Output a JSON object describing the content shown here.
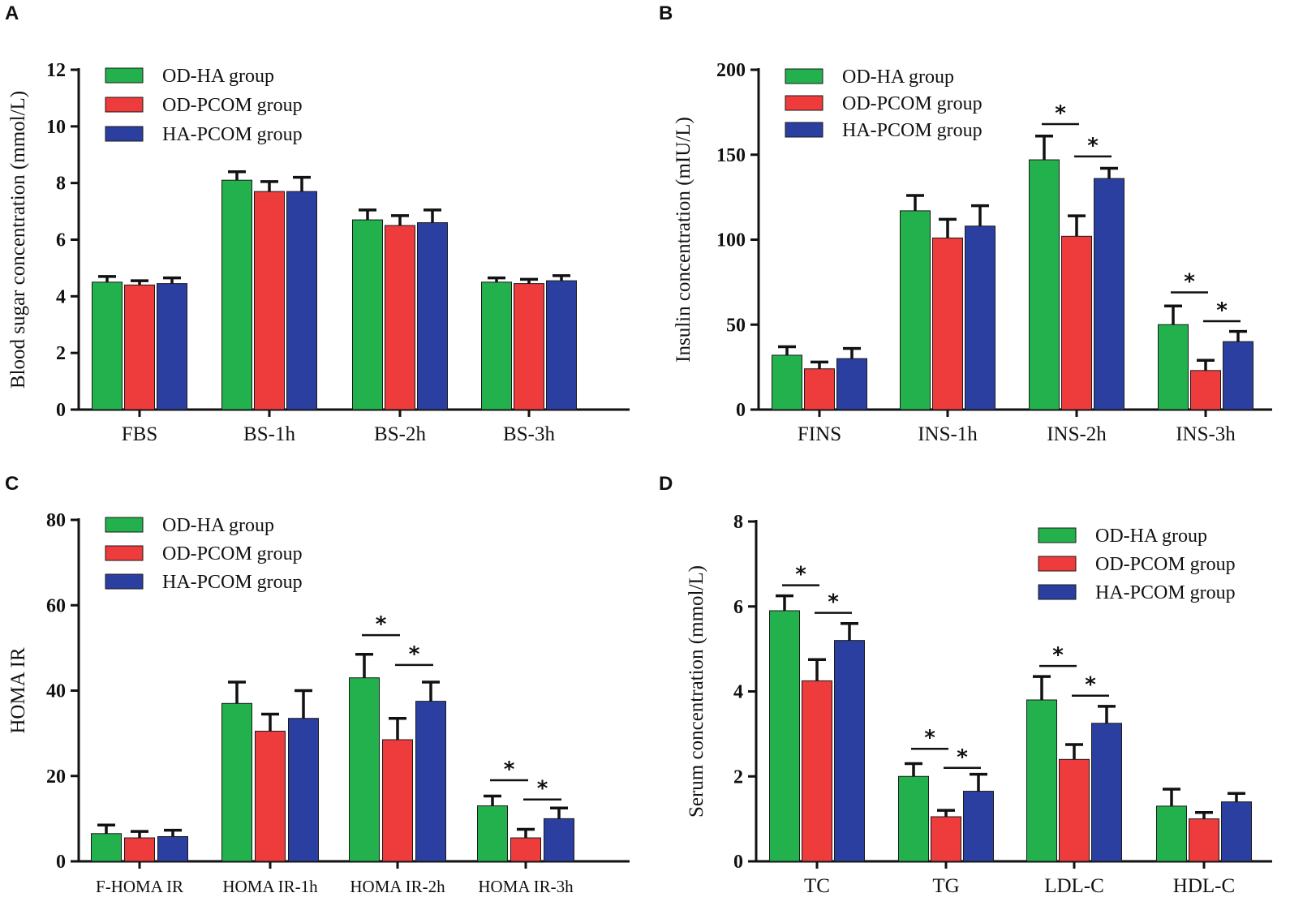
{
  "colors": {
    "od_ha": "#22b14c",
    "od_pcom": "#ee3b3b",
    "ha_pcom": "#2b3fa0",
    "axis": "#111111"
  },
  "legend": [
    "OD-HA group",
    "OD-PCOM group",
    "HA-PCOM group"
  ],
  "chart_data": [
    {
      "panel": "A",
      "type": "bar",
      "ylabel": "Blood sugar concentration (mmol/L)",
      "ylim": [
        0,
        12
      ],
      "yticks": [
        0,
        2,
        4,
        6,
        8,
        10,
        12
      ],
      "categories": [
        "FBS",
        "BS-1h",
        "BS-2h",
        "BS-3h"
      ],
      "series": [
        {
          "name": "OD-HA group",
          "values": [
            4.5,
            8.1,
            6.7,
            4.5
          ],
          "errors": [
            0.2,
            0.3,
            0.35,
            0.15
          ]
        },
        {
          "name": "OD-PCOM group",
          "values": [
            4.4,
            7.7,
            6.5,
            4.45
          ],
          "errors": [
            0.15,
            0.35,
            0.35,
            0.15
          ]
        },
        {
          "name": "HA-PCOM group",
          "values": [
            4.45,
            7.7,
            6.6,
            4.55
          ],
          "errors": [
            0.2,
            0.5,
            0.45,
            0.18
          ]
        }
      ],
      "legend_position": "top-left",
      "significance": []
    },
    {
      "panel": "B",
      "type": "bar",
      "ylabel": "Insulin concentration (mIU/L)",
      "ylim": [
        0,
        200
      ],
      "yticks": [
        0,
        50,
        100,
        150,
        200
      ],
      "categories": [
        "FINS",
        "INS-1h",
        "INS-2h",
        "INS-3h"
      ],
      "series": [
        {
          "name": "OD-HA group",
          "values": [
            32,
            117,
            147,
            50
          ],
          "errors": [
            5,
            9,
            14,
            11
          ]
        },
        {
          "name": "OD-PCOM group",
          "values": [
            24,
            101,
            102,
            23
          ],
          "errors": [
            4,
            11,
            12,
            6
          ]
        },
        {
          "name": "HA-PCOM group",
          "values": [
            30,
            108,
            136,
            40
          ],
          "errors": [
            6,
            12,
            6,
            6
          ]
        }
      ],
      "legend_position": "top-left",
      "significance": [
        {
          "category": 2,
          "from": 0,
          "to": 1,
          "y": 168,
          "label": "*"
        },
        {
          "category": 2,
          "from": 1,
          "to": 2,
          "y": 149,
          "label": "*"
        },
        {
          "category": 3,
          "from": 0,
          "to": 1,
          "y": 69,
          "label": "*"
        },
        {
          "category": 3,
          "from": 1,
          "to": 2,
          "y": 52,
          "label": "*"
        }
      ]
    },
    {
      "panel": "C",
      "type": "bar",
      "ylabel": "HOMA IR",
      "ylim": [
        0,
        80
      ],
      "yticks": [
        0,
        20,
        40,
        60,
        80
      ],
      "categories": [
        "F-HOMA IR",
        "HOMA IR-1h",
        "HOMA IR-2h",
        "HOMA IR-3h"
      ],
      "series": [
        {
          "name": "OD-HA group",
          "values": [
            6.5,
            37,
            43,
            13
          ],
          "errors": [
            2,
            5,
            5.5,
            2.3
          ]
        },
        {
          "name": "OD-PCOM group",
          "values": [
            5.5,
            30.5,
            28.5,
            5.5
          ],
          "errors": [
            1.5,
            4,
            5,
            2
          ]
        },
        {
          "name": "HA-PCOM group",
          "values": [
            5.8,
            33.5,
            37.5,
            10
          ],
          "errors": [
            1.5,
            6.5,
            4.5,
            2.5
          ]
        }
      ],
      "legend_position": "top-left",
      "significance": [
        {
          "category": 2,
          "from": 0,
          "to": 1,
          "y": 53,
          "label": "*"
        },
        {
          "category": 2,
          "from": 1,
          "to": 2,
          "y": 46,
          "label": "*"
        },
        {
          "category": 3,
          "from": 0,
          "to": 1,
          "y": 19,
          "label": "*"
        },
        {
          "category": 3,
          "from": 1,
          "to": 2,
          "y": 14.5,
          "label": "*"
        }
      ]
    },
    {
      "panel": "D",
      "type": "bar",
      "ylabel": "Serum concentration (mmol/L)",
      "ylim": [
        0,
        8
      ],
      "yticks": [
        0,
        2,
        4,
        6,
        8
      ],
      "categories": [
        "TC",
        "TG",
        "LDL-C",
        "HDL-C"
      ],
      "series": [
        {
          "name": "OD-HA group",
          "values": [
            5.9,
            2.0,
            3.8,
            1.3
          ],
          "errors": [
            0.35,
            0.3,
            0.55,
            0.4
          ]
        },
        {
          "name": "OD-PCOM group",
          "values": [
            4.25,
            1.05,
            2.4,
            1.0
          ],
          "errors": [
            0.5,
            0.15,
            0.35,
            0.15
          ]
        },
        {
          "name": "HA-PCOM group",
          "values": [
            5.2,
            1.65,
            3.25,
            1.4
          ],
          "errors": [
            0.4,
            0.4,
            0.4,
            0.2
          ]
        }
      ],
      "legend_position": "top-right",
      "significance": [
        {
          "category": 0,
          "from": 0,
          "to": 1,
          "y": 6.5,
          "label": "*"
        },
        {
          "category": 0,
          "from": 1,
          "to": 2,
          "y": 5.85,
          "label": "*"
        },
        {
          "category": 1,
          "from": 0,
          "to": 1,
          "y": 2.65,
          "label": "*"
        },
        {
          "category": 1,
          "from": 1,
          "to": 2,
          "y": 2.2,
          "label": "*"
        },
        {
          "category": 2,
          "from": 0,
          "to": 1,
          "y": 4.6,
          "label": "*"
        },
        {
          "category": 2,
          "from": 1,
          "to": 2,
          "y": 3.9,
          "label": "*"
        }
      ]
    }
  ]
}
